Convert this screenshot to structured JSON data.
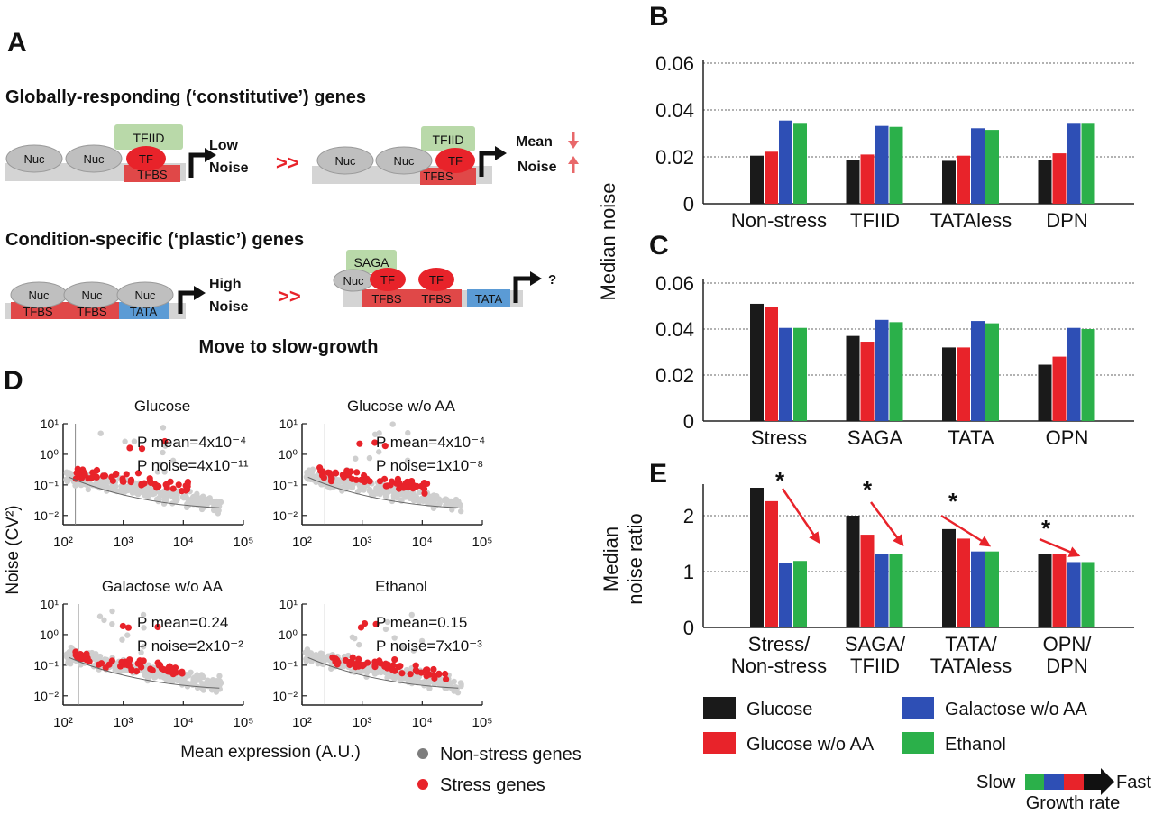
{
  "panels": {
    "A": {
      "letter": "A",
      "constitutive_title": "Globally-responding (‘constitutive’) genes",
      "plastic_title": "Condition-specific (‘plastic’) genes",
      "nuc": "Nuc",
      "tf": "TF",
      "tfbs": "TFBS",
      "tata": "TATA",
      "tfiid": "TFIID",
      "saga": "SAGA",
      "low": "Low",
      "high": "High",
      "noise": "Noise",
      "mean": "Mean",
      "arrow_sym": ">>",
      "question": "?",
      "move_caption": "Move to slow-growth"
    },
    "B": {
      "letter": "B"
    },
    "C": {
      "letter": "C"
    },
    "D": {
      "letter": "D"
    },
    "E": {
      "letter": "E"
    }
  },
  "shared": {
    "bc_ylabel": "Median noise",
    "e_ylabel_line1": "Median",
    "e_ylabel_line2": "noise ratio",
    "d_ylabel": "Noise (CV²)",
    "d_xlabel": "Mean expression (A.U.)"
  },
  "legend": {
    "bars": [
      {
        "label": "Glucose",
        "color": "#1a1a1a"
      },
      {
        "label": "Glucose w/o AA",
        "color": "#e8232a"
      },
      {
        "label": "Galactose w/o AA",
        "color": "#2e4fb5"
      },
      {
        "label": "Ethanol",
        "color": "#2bb04a"
      }
    ],
    "points": [
      {
        "label": "Non-stress genes",
        "color": "#7d7d7d"
      },
      {
        "label": "Stress genes",
        "color": "#e8232a"
      }
    ],
    "growth": {
      "slow": "Slow",
      "fast": "Fast",
      "label": "Growth rate"
    }
  },
  "chart_data": [
    {
      "panel": "B",
      "type": "bar",
      "categories": [
        "Non-stress",
        "TFIID",
        "TATAless",
        "DPN"
      ],
      "ylim": [
        0,
        0.06
      ],
      "yticks": [
        "0",
        "0.02",
        "0.04",
        "0.06"
      ],
      "grid": true,
      "series": [
        {
          "name": "Glucose",
          "values": [
            0.0205,
            0.0188,
            0.0183,
            0.0188
          ]
        },
        {
          "name": "Glucose w/o AA",
          "values": [
            0.0222,
            0.021,
            0.0205,
            0.0215
          ]
        },
        {
          "name": "Galactose w/o AA",
          "values": [
            0.0355,
            0.0332,
            0.0322,
            0.0345
          ]
        },
        {
          "name": "Ethanol",
          "values": [
            0.0345,
            0.0328,
            0.0315,
            0.0345
          ]
        }
      ]
    },
    {
      "panel": "C",
      "type": "bar",
      "categories": [
        "Stress",
        "SAGA",
        "TATA",
        "OPN"
      ],
      "ylim": [
        0,
        0.06
      ],
      "yticks": [
        "0",
        "0.02",
        "0.04",
        "0.06"
      ],
      "grid": true,
      "series": [
        {
          "name": "Glucose",
          "values": [
            0.051,
            0.037,
            0.032,
            0.0245
          ]
        },
        {
          "name": "Glucose w/o AA",
          "values": [
            0.0495,
            0.0345,
            0.032,
            0.028
          ]
        },
        {
          "name": "Galactose w/o AA",
          "values": [
            0.0405,
            0.044,
            0.0435,
            0.0405
          ]
        },
        {
          "name": "Ethanol",
          "values": [
            0.0405,
            0.043,
            0.0425,
            0.04
          ]
        }
      ]
    },
    {
      "panel": "E",
      "type": "bar",
      "categories": [
        [
          "Stress/",
          "Non-stress"
        ],
        [
          "SAGA/",
          "TFIID"
        ],
        [
          "TATA/",
          "TATAless"
        ],
        [
          "OPN/",
          "DPN"
        ]
      ],
      "ylim": [
        0,
        2.5
      ],
      "yticks": [
        "0",
        "1",
        "2"
      ],
      "grid": true,
      "annotation": "*",
      "series": [
        {
          "name": "Glucose",
          "values": [
            2.5,
            2.0,
            1.76,
            1.32
          ]
        },
        {
          "name": "Glucose w/o AA",
          "values": [
            2.26,
            1.66,
            1.59,
            1.32
          ]
        },
        {
          "name": "Galactose w/o AA",
          "values": [
            1.15,
            1.32,
            1.36,
            1.17
          ]
        },
        {
          "name": "Ethanol",
          "values": [
            1.19,
            1.32,
            1.36,
            1.17
          ]
        }
      ]
    },
    {
      "panel": "D",
      "type": "scatter",
      "xscale": "log",
      "yscale": "log",
      "xlim": [
        100,
        100000
      ],
      "ylim": [
        0.005,
        10
      ],
      "xticks": [
        "10²",
        "10³",
        "10⁴",
        "10⁵"
      ],
      "yticks": [
        "10⁻²",
        "10⁻¹",
        "10⁰",
        "10¹"
      ],
      "subplots": [
        {
          "title": "Glucose",
          "p_mean": "P mean=4x10⁻⁴",
          "p_noise": "P noise=4x10⁻¹¹",
          "cutoff_x": 160
        },
        {
          "title": "Glucose w/o AA",
          "p_mean": "P mean=4x10⁻⁴",
          "p_noise": "P noise=1x10⁻⁸",
          "cutoff_x": 240
        },
        {
          "title": "Galactose w/o AA",
          "p_mean": "P mean=0.24",
          "p_noise": "P noise=2x10⁻²",
          "cutoff_x": 180
        },
        {
          "title": "Ethanol",
          "p_mean": "P mean=0.15",
          "p_noise": "P noise=7x10⁻³",
          "cutoff_x": 240
        }
      ]
    }
  ]
}
